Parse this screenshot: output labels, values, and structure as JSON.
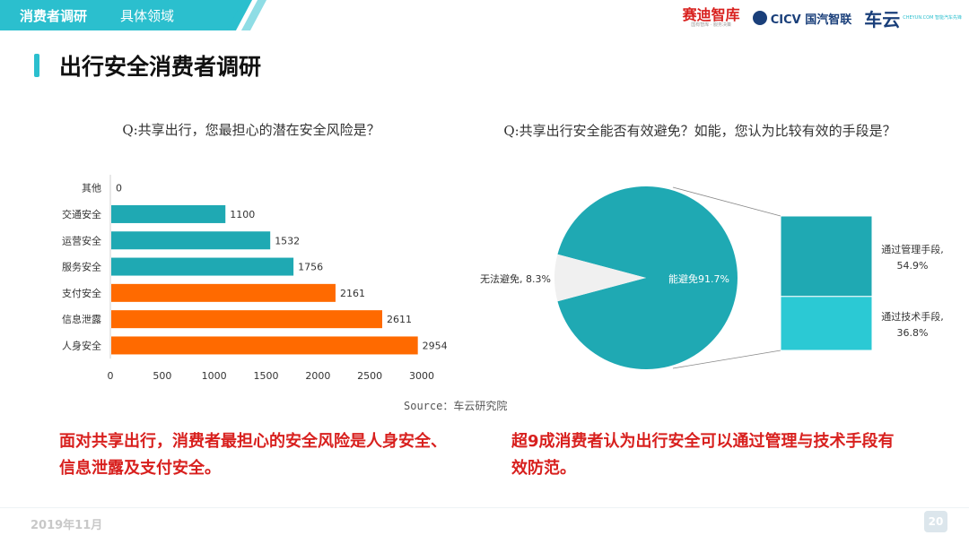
{
  "header": {
    "section": "消费者调研",
    "subsection": "具体领域",
    "logos": {
      "saidi": "赛迪智库",
      "saidi_tagline": "国有智库 · 服务决策",
      "cicv": "CICV 国汽智联",
      "cheyun": "车云",
      "cheyun_tagline": "CHEYUN.COM 智能汽车先锋"
    }
  },
  "page_title": "出行安全消费者调研",
  "left_question": "Q:共享出行，您最担心的潜在安全风险是？",
  "right_question": "Q:共享出行安全能否有效避免？如能，您认为比较有效的手段是？",
  "source": "Source：车云研究院",
  "conclusion_left": "面对共享出行，消费者最担心的安全风险是人身安全、信息泄露及支付安全。",
  "conclusion_right": "超9成消费者认为出行安全可以通过管理与技术手段有效防范。",
  "footer": {
    "date": "2019年11月",
    "page": "20"
  },
  "colors": {
    "teal": "#1fa9b3",
    "orange": "#ff6a00",
    "light_teal": "#2bc9d4",
    "slice_gray": "#f0f0f0"
  },
  "chart_data": [
    {
      "type": "bar",
      "orientation": "horizontal",
      "categories": [
        "其他",
        "交通安全",
        "运营安全",
        "服务安全",
        "支付安全",
        "信息泄露",
        "人身安全"
      ],
      "values": [
        0,
        1100,
        1532,
        1756,
        2161,
        2611,
        2954
      ],
      "bar_colors": [
        "#1fa9b3",
        "#1fa9b3",
        "#1fa9b3",
        "#1fa9b3",
        "#ff6a00",
        "#ff6a00",
        "#ff6a00"
      ],
      "xlim": [
        0,
        3000
      ],
      "xticks": [
        0,
        500,
        1000,
        1500,
        2000,
        2500,
        3000
      ],
      "grid": false
    },
    {
      "type": "pie",
      "slices": [
        {
          "label": "能避免",
          "value": 91.7,
          "text": "能避免91.7%"
        },
        {
          "label": "无法避免",
          "value": 8.3,
          "text": "无法避免, 8.3%"
        }
      ],
      "breakdown": {
        "type": "stacked-bar",
        "segments": [
          {
            "label": "通过管理手段",
            "value": 54.9,
            "text_line1": "通过管理手段,",
            "text_line2": "54.9%"
          },
          {
            "label": "通过技术手段",
            "value": 36.8,
            "text_line1": "通过技术手段,",
            "text_line2": "36.8%"
          }
        ]
      }
    }
  ]
}
